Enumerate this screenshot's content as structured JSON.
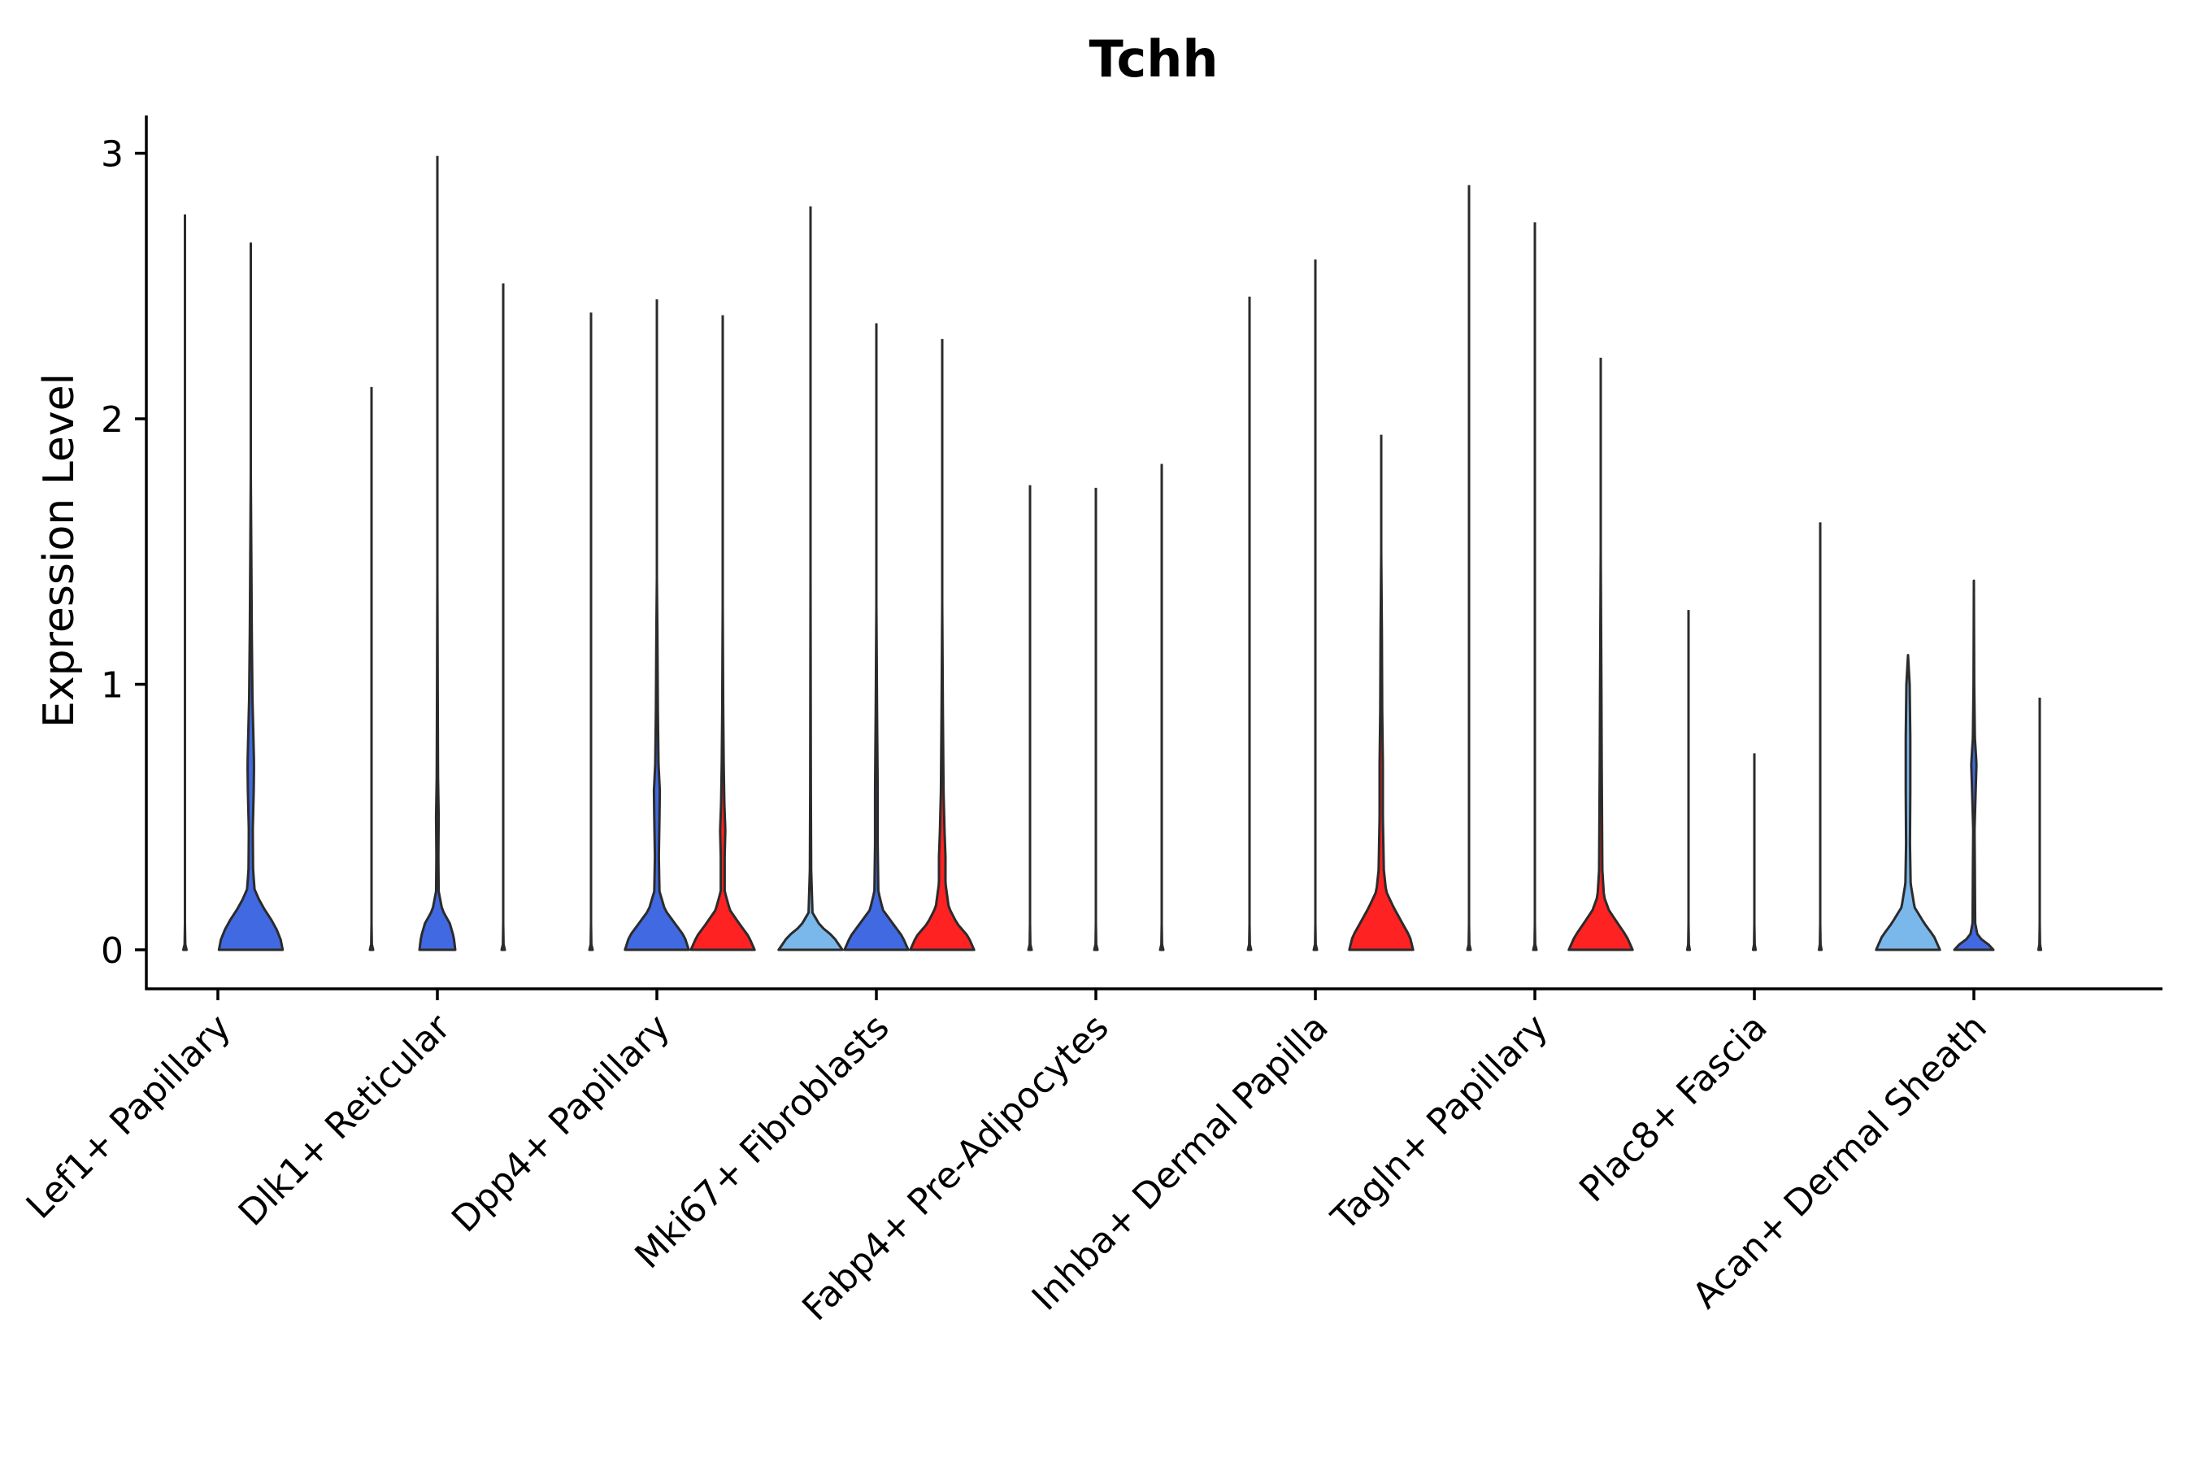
{
  "chart_data": {
    "type": "violin",
    "title": "Tchh",
    "xlabel": "",
    "ylabel": "Expression Level",
    "ylim": [
      -0.15,
      3.15
    ],
    "yticks": [
      0,
      1,
      2,
      3
    ],
    "grid": false,
    "legend": "none",
    "colors": {
      "light_blue": "#7ab8ec",
      "blue": "#4169e1",
      "red": "#ff2222",
      "none": "#ffffff",
      "stroke": "#2b2b2b"
    },
    "categories": [
      "Lef1+ Papillary",
      "Dlk1+ Reticular",
      "Dpp4+ Papillary",
      "Mki67+ Fibroblasts",
      "Fabp4+ Pre-Adipocytes",
      "Inhba+ Dermal Papilla",
      "Tagln+ Papillary",
      "Plac8+ Fascia",
      "Acan+ Dermal Sheath"
    ],
    "groups": [
      {
        "category": "Lef1+ Papillary",
        "violins": [
          {
            "fill": "none",
            "max": 2.77,
            "profile": [
              [
                0,
                0.05
              ],
              [
                0.02,
                0.01
              ],
              [
                0.1,
                0
              ]
            ]
          },
          {
            "fill": "blue",
            "max": 2.66,
            "profile": [
              [
                0,
                0.98
              ],
              [
                0.05,
                0.9
              ],
              [
                0.1,
                0.7
              ],
              [
                0.16,
                0.38
              ],
              [
                0.22,
                0.12
              ],
              [
                0.3,
                0.07
              ],
              [
                0.45,
                0.06
              ],
              [
                0.6,
                0.09
              ],
              [
                0.7,
                0.1
              ],
              [
                0.8,
                0.08
              ],
              [
                0.95,
                0.05
              ],
              [
                1.2,
                0.03
              ],
              [
                1.5,
                0.015
              ],
              [
                1.8,
                0
              ],
              [
                2.66,
                0
              ]
            ]
          }
        ]
      },
      {
        "category": "Dlk1+ Reticular",
        "violins": [
          {
            "fill": "none",
            "max": 2.12,
            "profile": [
              [
                0,
                0.05
              ],
              [
                0.02,
                0.01
              ],
              [
                0.1,
                0
              ]
            ]
          },
          {
            "fill": "blue",
            "max": 2.99,
            "profile": [
              [
                0,
                0.55
              ],
              [
                0.05,
                0.5
              ],
              [
                0.1,
                0.38
              ],
              [
                0.15,
                0.15
              ],
              [
                0.22,
                0.04
              ],
              [
                0.35,
                0.03
              ],
              [
                0.5,
                0.04
              ],
              [
                0.65,
                0.02
              ],
              [
                1.0,
                0.01
              ],
              [
                1.4,
                0
              ]
            ]
          },
          {
            "fill": "none",
            "max": 2.51,
            "profile": [
              [
                0,
                0.05
              ],
              [
                0.02,
                0.01
              ],
              [
                0.1,
                0
              ]
            ]
          }
        ]
      },
      {
        "category": "Dpp4+ Papillary",
        "violins": [
          {
            "fill": "none",
            "max": 2.4,
            "profile": [
              [
                0,
                0.05
              ],
              [
                0.02,
                0.01
              ],
              [
                0.1,
                0
              ]
            ]
          },
          {
            "fill": "blue",
            "max": 2.45,
            "profile": [
              [
                0,
                0.98
              ],
              [
                0.05,
                0.85
              ],
              [
                0.1,
                0.55
              ],
              [
                0.15,
                0.25
              ],
              [
                0.22,
                0.08
              ],
              [
                0.35,
                0.06
              ],
              [
                0.5,
                0.08
              ],
              [
                0.6,
                0.09
              ],
              [
                0.7,
                0.05
              ],
              [
                0.9,
                0.03
              ],
              [
                1.2,
                0.015
              ],
              [
                1.4,
                0
              ]
            ]
          },
          {
            "fill": "red",
            "max": 2.39,
            "profile": [
              [
                0,
                0.98
              ],
              [
                0.05,
                0.8
              ],
              [
                0.1,
                0.5
              ],
              [
                0.15,
                0.22
              ],
              [
                0.22,
                0.06
              ],
              [
                0.35,
                0.06
              ],
              [
                0.45,
                0.08
              ],
              [
                0.55,
                0.05
              ],
              [
                0.7,
                0.03
              ],
              [
                0.9,
                0.015
              ],
              [
                1.3,
                0
              ]
            ]
          }
        ]
      },
      {
        "category": "Mki67+ Fibroblasts",
        "violins": [
          {
            "fill": "light_blue",
            "max": 2.8,
            "profile": [
              [
                0,
                0.98
              ],
              [
                0.05,
                0.7
              ],
              [
                0.09,
                0.3
              ],
              [
                0.14,
                0.06
              ],
              [
                0.3,
                0.02
              ],
              [
                0.6,
                0.01
              ],
              [
                1.4,
                0
              ]
            ]
          },
          {
            "fill": "blue",
            "max": 2.36,
            "profile": [
              [
                0,
                0.98
              ],
              [
                0.05,
                0.8
              ],
              [
                0.1,
                0.5
              ],
              [
                0.15,
                0.2
              ],
              [
                0.22,
                0.06
              ],
              [
                0.4,
                0.04
              ],
              [
                0.6,
                0.04
              ],
              [
                0.9,
                0.02
              ],
              [
                1.3,
                0
              ]
            ]
          },
          {
            "fill": "red",
            "max": 2.3,
            "profile": [
              [
                0,
                0.98
              ],
              [
                0.05,
                0.8
              ],
              [
                0.1,
                0.45
              ],
              [
                0.16,
                0.2
              ],
              [
                0.25,
                0.1
              ],
              [
                0.35,
                0.1
              ],
              [
                0.45,
                0.07
              ],
              [
                0.6,
                0.04
              ],
              [
                0.9,
                0.02
              ],
              [
                1.3,
                0
              ]
            ]
          }
        ]
      },
      {
        "category": "Fabp4+ Pre-Adipocytes",
        "violins": [
          {
            "fill": "none",
            "max": 1.75,
            "profile": [
              [
                0,
                0.05
              ],
              [
                0.02,
                0.01
              ],
              [
                0.1,
                0
              ]
            ]
          },
          {
            "fill": "none",
            "max": 1.74,
            "profile": [
              [
                0,
                0.05
              ],
              [
                0.02,
                0.01
              ],
              [
                0.1,
                0
              ]
            ]
          },
          {
            "fill": "none",
            "max": 1.83,
            "profile": [
              [
                0,
                0.05
              ],
              [
                0.02,
                0.01
              ],
              [
                0.1,
                0
              ]
            ]
          }
        ]
      },
      {
        "category": "Inhba+ Dermal Papilla",
        "violins": [
          {
            "fill": "none",
            "max": 2.46,
            "profile": [
              [
                0,
                0.05
              ],
              [
                0.02,
                0.01
              ],
              [
                0.1,
                0
              ]
            ]
          },
          {
            "fill": "none",
            "max": 2.6,
            "profile": [
              [
                0,
                0.05
              ],
              [
                0.02,
                0.01
              ],
              [
                0.1,
                0
              ]
            ]
          },
          {
            "fill": "red",
            "max": 1.94,
            "profile": [
              [
                0,
                0.98
              ],
              [
                0.05,
                0.88
              ],
              [
                0.1,
                0.65
              ],
              [
                0.16,
                0.38
              ],
              [
                0.22,
                0.15
              ],
              [
                0.3,
                0.08
              ],
              [
                0.5,
                0.05
              ],
              [
                0.7,
                0.05
              ],
              [
                0.9,
                0.03
              ],
              [
                1.2,
                0.02
              ],
              [
                1.5,
                0
              ]
            ]
          }
        ]
      },
      {
        "category": "Tagln+ Papillary",
        "violins": [
          {
            "fill": "none",
            "max": 2.88,
            "profile": [
              [
                0,
                0.05
              ],
              [
                0.02,
                0.01
              ],
              [
                0.1,
                0
              ]
            ]
          },
          {
            "fill": "none",
            "max": 2.74,
            "profile": [
              [
                0,
                0.05
              ],
              [
                0.02,
                0.01
              ],
              [
                0.1,
                0
              ]
            ]
          },
          {
            "fill": "red",
            "max": 2.23,
            "profile": [
              [
                0,
                0.98
              ],
              [
                0.05,
                0.8
              ],
              [
                0.1,
                0.52
              ],
              [
                0.15,
                0.25
              ],
              [
                0.2,
                0.1
              ],
              [
                0.3,
                0.05
              ],
              [
                0.5,
                0.04
              ],
              [
                0.7,
                0.03
              ],
              [
                1.0,
                0.02
              ],
              [
                1.5,
                0
              ]
            ]
          }
        ]
      },
      {
        "category": "Plac8+ Fascia",
        "violins": [
          {
            "fill": "none",
            "max": 1.28,
            "profile": [
              [
                0,
                0.04
              ],
              [
                0.02,
                0.01
              ],
              [
                0.1,
                0
              ]
            ]
          },
          {
            "fill": "none",
            "max": 0.74,
            "profile": [
              [
                0,
                0.04
              ],
              [
                0.02,
                0.01
              ],
              [
                0.1,
                0
              ]
            ]
          },
          {
            "fill": "none",
            "max": 1.61,
            "profile": [
              [
                0,
                0.04
              ],
              [
                0.02,
                0.01
              ],
              [
                0.1,
                0
              ]
            ]
          }
        ]
      },
      {
        "category": "Acan+ Dermal Sheath",
        "violins": [
          {
            "fill": "light_blue",
            "max": 1.11,
            "profile": [
              [
                0,
                0.98
              ],
              [
                0.05,
                0.8
              ],
              [
                0.1,
                0.5
              ],
              [
                0.16,
                0.2
              ],
              [
                0.25,
                0.08
              ],
              [
                0.4,
                0.06
              ],
              [
                0.6,
                0.07
              ],
              [
                0.8,
                0.07
              ],
              [
                1.0,
                0.05
              ],
              [
                1.11,
                0
              ]
            ]
          },
          {
            "fill": "blue",
            "max": 1.39,
            "profile": [
              [
                0,
                0.6
              ],
              [
                0.02,
                0.45
              ],
              [
                0.05,
                0.12
              ],
              [
                0.1,
                0.04
              ],
              [
                0.3,
                0.03
              ],
              [
                0.45,
                0.02
              ],
              [
                0.62,
                0.06
              ],
              [
                0.7,
                0.08
              ],
              [
                0.8,
                0.03
              ],
              [
                1.0,
                0.01
              ],
              [
                1.39,
                0
              ]
            ]
          },
          {
            "fill": "none",
            "max": 0.95,
            "profile": [
              [
                0,
                0.04
              ],
              [
                0.02,
                0.01
              ],
              [
                0.1,
                0
              ]
            ]
          }
        ]
      }
    ]
  }
}
